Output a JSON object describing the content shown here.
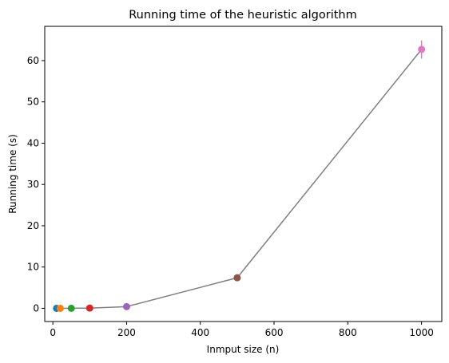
{
  "chart_data": {
    "type": "line",
    "title": "Running time of the heuristic algorithm",
    "xlabel": "Inmput size (n)",
    "ylabel": "Running time (s)",
    "xlim": [
      -22,
      1055
    ],
    "ylim": [
      -3.2,
      68.3
    ],
    "x_ticks": [
      0,
      200,
      400,
      600,
      800,
      1000
    ],
    "y_ticks": [
      0,
      10,
      20,
      30,
      40,
      50,
      60
    ],
    "grid": false,
    "line_color": "#808080",
    "series": [
      {
        "x": [
          10,
          20,
          50,
          100,
          200,
          500,
          1000
        ],
        "y": [
          0.0,
          0.0,
          0.01,
          0.05,
          0.4,
          7.4,
          62.7
        ],
        "yerr": [
          0.05,
          0.05,
          0.05,
          0.1,
          0.2,
          0.3,
          2.2
        ],
        "point_colors": [
          "#1f77b4",
          "#ff7f0e",
          "#2ca02c",
          "#d62728",
          "#9467bd",
          "#8c564b",
          "#e377c2"
        ]
      }
    ]
  }
}
